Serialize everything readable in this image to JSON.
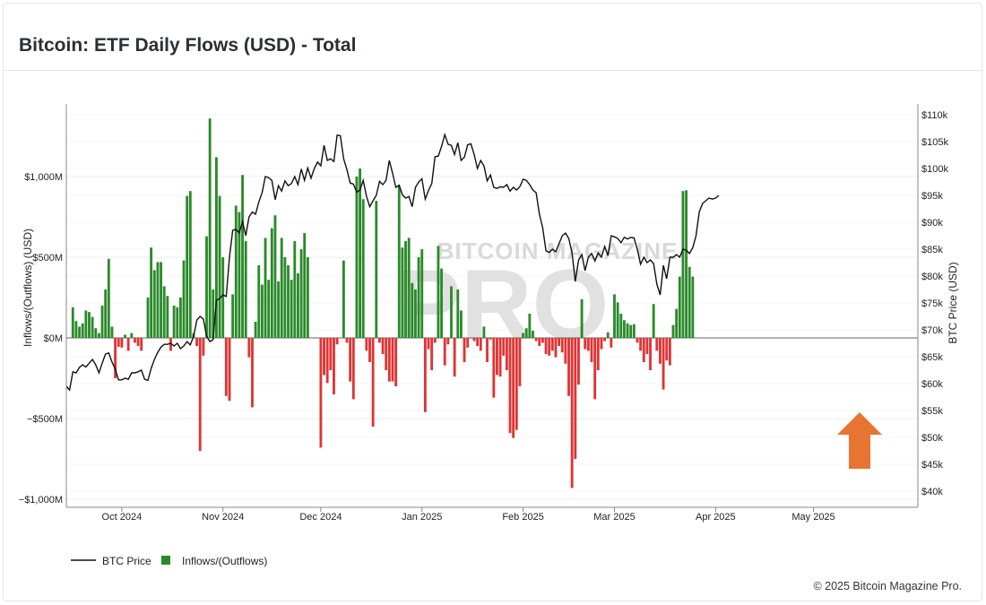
{
  "page": {
    "title": "Bitcoin: ETF Daily Flows (USD) - Total",
    "footer": "© 2025 Bitcoin Magazine Pro.",
    "watermark_line1": "BITCOIN MAGAZINE",
    "watermark_line2": "PRO"
  },
  "colors": {
    "inflow": "#2a8a2a",
    "outflow": "#e03333",
    "price": "#111111",
    "arrow": "#e87431",
    "grid": "#ececec"
  },
  "chart_data": {
    "type": "bar",
    "title": "Bitcoin: ETF Daily Flows (USD) - Total",
    "xlabel": "",
    "ylabel": "Inflows/(Outflows) (USD)",
    "y2label": "BTC Price (USD)",
    "ylim": [
      -1050,
      1450
    ],
    "y2lim": [
      37000,
      112000
    ],
    "x_range_days": [
      -17,
      244
    ],
    "legend_position": "bottom-left",
    "legend": [
      {
        "name": "BTC Price",
        "kind": "line"
      },
      {
        "name": "Inflows/(Outflows)",
        "kind": "bar"
      }
    ],
    "y_ticks": [
      {
        "label": "$1,000M",
        "value": 1000
      },
      {
        "label": "$500M",
        "value": 500
      },
      {
        "label": "$0M",
        "value": 0
      },
      {
        "label": "−$500M",
        "value": -500
      },
      {
        "label": "−$1,000M",
        "value": -1000
      }
    ],
    "y2_ticks": [
      {
        "label": "$110k",
        "value": 110000
      },
      {
        "label": "$105k",
        "value": 105000
      },
      {
        "label": "$100k",
        "value": 100000
      },
      {
        "label": "$95k",
        "value": 95000
      },
      {
        "label": "$90k",
        "value": 90000
      },
      {
        "label": "$85k",
        "value": 85000
      },
      {
        "label": "$80k",
        "value": 80000
      },
      {
        "label": "$75k",
        "value": 75000
      },
      {
        "label": "$70k",
        "value": 70000
      },
      {
        "label": "$65k",
        "value": 65000
      },
      {
        "label": "$60k",
        "value": 60000
      },
      {
        "label": "$55k",
        "value": 55000
      },
      {
        "label": "$50k",
        "value": 50000
      },
      {
        "label": "$45k",
        "value": 45000
      },
      {
        "label": "$40k",
        "value": 40000
      }
    ],
    "x_ticks": [
      {
        "label": "Oct 2024",
        "day": 0
      },
      {
        "label": "Nov 2024",
        "day": 31
      },
      {
        "label": "Dec 2024",
        "day": 61
      },
      {
        "label": "Jan 2025",
        "day": 92
      },
      {
        "label": "Feb 2025",
        "day": 123
      },
      {
        "label": "Mar 2025",
        "day": 151
      },
      {
        "label": "Apr 2025",
        "day": 182
      },
      {
        "label": "May 2025",
        "day": 212
      }
    ],
    "flows": [
      [
        -15,
        190
      ],
      [
        -14,
        105
      ],
      [
        -13,
        70
      ],
      [
        -12,
        90
      ],
      [
        -11,
        170
      ],
      [
        -10,
        160
      ],
      [
        -9,
        130
      ],
      [
        -8,
        60
      ],
      [
        -7,
        30
      ],
      [
        -6,
        200
      ],
      [
        -5,
        300
      ],
      [
        -4,
        490
      ],
      [
        -3,
        70
      ],
      [
        -2,
        -250
      ],
      [
        -1,
        -55
      ],
      [
        0,
        -60
      ],
      [
        1,
        20
      ],
      [
        2,
        -80
      ],
      [
        3,
        30
      ],
      [
        4,
        -30
      ],
      [
        5,
        -50
      ],
      [
        6,
        -80
      ],
      [
        8,
        250
      ],
      [
        9,
        560
      ],
      [
        10,
        420
      ],
      [
        11,
        470
      ],
      [
        12,
        470
      ],
      [
        13,
        320
      ],
      [
        14,
        260
      ],
      [
        15,
        -80
      ],
      [
        16,
        200
      ],
      [
        17,
        190
      ],
      [
        18,
        250
      ],
      [
        19,
        480
      ],
      [
        20,
        880
      ],
      [
        21,
        910
      ],
      [
        22,
        30
      ],
      [
        23,
        -50
      ],
      [
        24,
        -700
      ],
      [
        25,
        -110
      ],
      [
        26,
        630
      ],
      [
        27,
        1360
      ],
      [
        28,
        300
      ],
      [
        29,
        1120
      ],
      [
        30,
        880
      ],
      [
        31,
        500
      ],
      [
        32,
        -360
      ],
      [
        33,
        -390
      ],
      [
        34,
        270
      ],
      [
        35,
        820
      ],
      [
        36,
        780
      ],
      [
        37,
        1010
      ],
      [
        38,
        600
      ],
      [
        39,
        -120
      ],
      [
        40,
        -430
      ],
      [
        41,
        100
      ],
      [
        42,
        450
      ],
      [
        43,
        330
      ],
      [
        44,
        620
      ],
      [
        45,
        360
      ],
      [
        46,
        680
      ],
      [
        47,
        760
      ],
      [
        48,
        350
      ],
      [
        49,
        620
      ],
      [
        50,
        500
      ],
      [
        51,
        450
      ],
      [
        52,
        360
      ],
      [
        53,
        600
      ],
      [
        54,
        400
      ],
      [
        55,
        550
      ],
      [
        56,
        650
      ],
      [
        57,
        500
      ],
      [
        61,
        -680
      ],
      [
        62,
        -230
      ],
      [
        63,
        -280
      ],
      [
        64,
        -200
      ],
      [
        65,
        -350
      ],
      [
        66,
        -40
      ],
      [
        68,
        480
      ],
      [
        69,
        -30
      ],
      [
        70,
        -270
      ],
      [
        71,
        -380
      ],
      [
        72,
        1000
      ],
      [
        73,
        1050
      ],
      [
        74,
        860
      ],
      [
        75,
        -80
      ],
      [
        76,
        -150
      ],
      [
        77,
        -550
      ],
      [
        78,
        850
      ],
      [
        79,
        -30
      ],
      [
        80,
        -100
      ],
      [
        81,
        -200
      ],
      [
        82,
        -270
      ],
      [
        83,
        -270
      ],
      [
        84,
        -300
      ],
      [
        85,
        940
      ],
      [
        86,
        560
      ],
      [
        87,
        600
      ],
      [
        88,
        620
      ],
      [
        89,
        340
      ],
      [
        90,
        300
      ],
      [
        91,
        500
      ],
      [
        92,
        550
      ],
      [
        93,
        -460
      ],
      [
        94,
        -70
      ],
      [
        95,
        -200
      ],
      [
        96,
        -30
      ],
      [
        97,
        570
      ],
      [
        98,
        430
      ],
      [
        99,
        -170
      ],
      [
        100,
        -40
      ],
      [
        101,
        320
      ],
      [
        102,
        -240
      ],
      [
        103,
        300
      ],
      [
        104,
        170
      ],
      [
        105,
        -150
      ],
      [
        106,
        -60
      ],
      [
        108,
        -20
      ],
      [
        109,
        -50
      ],
      [
        110,
        -80
      ],
      [
        111,
        70
      ],
      [
        112,
        -150
      ],
      [
        113,
        -10
      ],
      [
        114,
        -370
      ],
      [
        115,
        -230
      ],
      [
        116,
        -240
      ],
      [
        117,
        -110
      ],
      [
        118,
        -200
      ],
      [
        119,
        -590
      ],
      [
        120,
        -620
      ],
      [
        121,
        -570
      ],
      [
        122,
        -300
      ],
      [
        123,
        30
      ],
      [
        124,
        60
      ],
      [
        125,
        150
      ],
      [
        126,
        45
      ],
      [
        127,
        -20
      ],
      [
        128,
        -50
      ],
      [
        129,
        -30
      ],
      [
        130,
        -100
      ],
      [
        131,
        -110
      ],
      [
        132,
        -80
      ],
      [
        133,
        -120
      ],
      [
        134,
        -50
      ],
      [
        135,
        -90
      ],
      [
        136,
        -160
      ],
      [
        137,
        -360
      ],
      [
        138,
        -930
      ],
      [
        139,
        -750
      ],
      [
        140,
        -290
      ],
      [
        141,
        240
      ],
      [
        142,
        -70
      ],
      [
        143,
        -80
      ],
      [
        144,
        -150
      ],
      [
        145,
        -380
      ],
      [
        146,
        -200
      ],
      [
        147,
        -70
      ],
      [
        148,
        -20
      ],
      [
        149,
        35
      ],
      [
        150,
        -60
      ],
      [
        151,
        270
      ],
      [
        152,
        220
      ],
      [
        153,
        150
      ],
      [
        154,
        110
      ],
      [
        155,
        90
      ],
      [
        156,
        80
      ],
      [
        157,
        85
      ],
      [
        158,
        -30
      ],
      [
        159,
        -80
      ],
      [
        160,
        -150
      ],
      [
        161,
        -100
      ],
      [
        162,
        -200
      ],
      [
        163,
        210
      ],
      [
        164,
        -80
      ],
      [
        165,
        -160
      ],
      [
        166,
        -320
      ],
      [
        167,
        -140
      ],
      [
        168,
        -170
      ],
      [
        169,
        80
      ],
      [
        170,
        180
      ],
      [
        171,
        380
      ],
      [
        172,
        910
      ],
      [
        173,
        915
      ],
      [
        174,
        440
      ],
      [
        175,
        380
      ]
    ],
    "price": [
      [
        -17,
        59500
      ],
      [
        -16,
        58800
      ],
      [
        -15,
        62200
      ],
      [
        -14,
        62000
      ],
      [
        -13,
        63000
      ],
      [
        -12,
        63500
      ],
      [
        -11,
        63100
      ],
      [
        -10,
        63800
      ],
      [
        -9,
        64500
      ],
      [
        -8,
        63500
      ],
      [
        -7,
        62000
      ],
      [
        -6,
        63800
      ],
      [
        -5,
        65500
      ],
      [
        -4,
        65700
      ],
      [
        -3,
        64000
      ],
      [
        -2,
        62700
      ],
      [
        -1,
        60700
      ],
      [
        0,
        60700
      ],
      [
        1,
        61000
      ],
      [
        2,
        60800
      ],
      [
        3,
        62000
      ],
      [
        4,
        62000
      ],
      [
        5,
        62200
      ],
      [
        6,
        62500
      ],
      [
        7,
        60800
      ],
      [
        8,
        60600
      ],
      [
        9,
        62800
      ],
      [
        10,
        64500
      ],
      [
        11,
        65800
      ],
      [
        12,
        66800
      ],
      [
        13,
        67300
      ],
      [
        14,
        67300
      ],
      [
        15,
        67500
      ],
      [
        16,
        67000
      ],
      [
        17,
        67500
      ],
      [
        18,
        66500
      ],
      [
        19,
        67000
      ],
      [
        20,
        67800
      ],
      [
        21,
        67200
      ],
      [
        22,
        68800
      ],
      [
        23,
        71800
      ],
      [
        24,
        72500
      ],
      [
        25,
        72000
      ],
      [
        26,
        68800
      ],
      [
        27,
        67800
      ],
      [
        28,
        68200
      ],
      [
        29,
        75500
      ],
      [
        30,
        75800
      ],
      [
        31,
        76500
      ],
      [
        32,
        76200
      ],
      [
        33,
        83500
      ],
      [
        34,
        88500
      ],
      [
        35,
        88700
      ],
      [
        36,
        88000
      ],
      [
        37,
        90100
      ],
      [
        38,
        87500
      ],
      [
        39,
        91000
      ],
      [
        40,
        91900
      ],
      [
        41,
        91500
      ],
      [
        42,
        93800
      ],
      [
        43,
        95500
      ],
      [
        44,
        98500
      ],
      [
        45,
        98300
      ],
      [
        46,
        97800
      ],
      [
        47,
        94200
      ],
      [
        48,
        96800
      ],
      [
        49,
        95800
      ],
      [
        50,
        97700
      ],
      [
        51,
        96800
      ],
      [
        52,
        97200
      ],
      [
        53,
        98500
      ],
      [
        54,
        97000
      ],
      [
        55,
        99900
      ],
      [
        56,
        97800
      ],
      [
        57,
        100100
      ],
      [
        58,
        98200
      ],
      [
        59,
        100000
      ],
      [
        60,
        101200
      ],
      [
        61,
        100500
      ],
      [
        62,
        104300
      ],
      [
        63,
        101500
      ],
      [
        64,
        101800
      ],
      [
        65,
        101300
      ],
      [
        66,
        106200
      ],
      [
        67,
        106100
      ],
      [
        68,
        101800
      ],
      [
        69,
        99800
      ],
      [
        70,
        97300
      ],
      [
        71,
        97100
      ],
      [
        72,
        95600
      ],
      [
        73,
        96000
      ],
      [
        74,
        97800
      ],
      [
        75,
        94800
      ],
      [
        76,
        92900
      ],
      [
        77,
        94000
      ],
      [
        78,
        95000
      ],
      [
        79,
        97600
      ],
      [
        80,
        97000
      ],
      [
        81,
        97800
      ],
      [
        82,
        101500
      ],
      [
        83,
        99100
      ],
      [
        84,
        96500
      ],
      [
        85,
        96900
      ],
      [
        86,
        95100
      ],
      [
        87,
        94500
      ],
      [
        88,
        94800
      ],
      [
        89,
        92900
      ],
      [
        90,
        96500
      ],
      [
        91,
        97500
      ],
      [
        92,
        98100
      ],
      [
        93,
        94300
      ],
      [
        94,
        95900
      ],
      [
        95,
        97200
      ],
      [
        96,
        102200
      ],
      [
        97,
        102300
      ],
      [
        98,
        104100
      ],
      [
        99,
        106300
      ],
      [
        100,
        104500
      ],
      [
        101,
        104300
      ],
      [
        102,
        102600
      ],
      [
        103,
        104800
      ],
      [
        104,
        101500
      ],
      [
        105,
        102100
      ],
      [
        106,
        104400
      ],
      [
        107,
        104600
      ],
      [
        108,
        102600
      ],
      [
        109,
        100000
      ],
      [
        110,
        101500
      ],
      [
        111,
        100500
      ],
      [
        112,
        97700
      ],
      [
        113,
        98800
      ],
      [
        114,
        96500
      ],
      [
        115,
        96300
      ],
      [
        116,
        96600
      ],
      [
        117,
        96500
      ],
      [
        118,
        97000
      ],
      [
        119,
        95800
      ],
      [
        120,
        96500
      ],
      [
        121,
        96000
      ],
      [
        122,
        96600
      ],
      [
        123,
        98000
      ],
      [
        124,
        97800
      ],
      [
        125,
        97000
      ],
      [
        126,
        96000
      ],
      [
        127,
        95500
      ],
      [
        128,
        91500
      ],
      [
        129,
        89000
      ],
      [
        130,
        84700
      ],
      [
        131,
        84400
      ],
      [
        132,
        85000
      ],
      [
        133,
        84500
      ],
      [
        134,
        86000
      ],
      [
        135,
        87500
      ],
      [
        136,
        88000
      ],
      [
        137,
        87000
      ],
      [
        138,
        84300
      ],
      [
        139,
        79000
      ],
      [
        140,
        83000
      ],
      [
        141,
        84000
      ],
      [
        142,
        81000
      ],
      [
        143,
        83500
      ],
      [
        144,
        84200
      ],
      [
        145,
        82800
      ],
      [
        146,
        84300
      ],
      [
        147,
        83500
      ],
      [
        148,
        85500
      ],
      [
        149,
        83800
      ],
      [
        150,
        87500
      ],
      [
        151,
        87300
      ],
      [
        152,
        87000
      ],
      [
        153,
        86200
      ],
      [
        154,
        87200
      ],
      [
        155,
        86900
      ],
      [
        156,
        87200
      ],
      [
        157,
        87100
      ],
      [
        158,
        85000
      ],
      [
        159,
        82200
      ],
      [
        160,
        83500
      ],
      [
        161,
        82500
      ],
      [
        162,
        83000
      ],
      [
        163,
        82300
      ],
      [
        164,
        78500
      ],
      [
        165,
        76500
      ],
      [
        166,
        82000
      ],
      [
        167,
        79500
      ],
      [
        168,
        83500
      ],
      [
        169,
        83500
      ],
      [
        170,
        84000
      ],
      [
        171,
        83500
      ],
      [
        172,
        85000
      ],
      [
        173,
        84800
      ],
      [
        174,
        84200
      ],
      [
        175,
        85300
      ],
      [
        176,
        87500
      ],
      [
        177,
        91900
      ],
      [
        178,
        93500
      ],
      [
        179,
        94000
      ],
      [
        180,
        94500
      ],
      [
        181,
        94300
      ],
      [
        182,
        94500
      ],
      [
        183,
        95000
      ]
    ]
  }
}
